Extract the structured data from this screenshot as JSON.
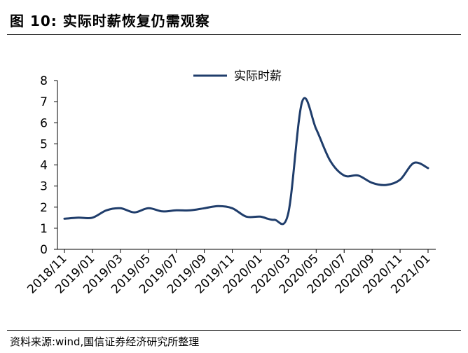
{
  "figure": {
    "title": "图 10:  实际时薪恢复仍需观察",
    "source": "资料来源:wind,国信证券经济研究所整理"
  },
  "chart_data": {
    "type": "line",
    "title": "",
    "xlabel": "",
    "ylabel": "",
    "ylim": [
      0,
      8
    ],
    "yticks": [
      0,
      1,
      2,
      3,
      4,
      5,
      6,
      7,
      8
    ],
    "x_tick_labels": [
      "2018/11",
      "2019/01",
      "2019/03",
      "2019/05",
      "2019/07",
      "2019/09",
      "2019/11",
      "2020/01",
      "2020/03",
      "2020/05",
      "2020/07",
      "2020/09",
      "2020/11",
      "2021/01"
    ],
    "grid": false,
    "legend_position": "top-center",
    "series": [
      {
        "name": "实际时薪",
        "color": "#1f3d6b",
        "x": [
          "2018/11",
          "2018/12",
          "2019/01",
          "2019/02",
          "2019/03",
          "2019/04",
          "2019/05",
          "2019/06",
          "2019/07",
          "2019/08",
          "2019/09",
          "2019/10",
          "2019/11",
          "2019/12",
          "2020/01",
          "2020/02",
          "2020/03",
          "2020/04",
          "2020/05",
          "2020/06",
          "2020/07",
          "2020/08",
          "2020/09",
          "2020/10",
          "2020/11",
          "2020/12",
          "2021/01"
        ],
        "values": [
          1.45,
          1.5,
          1.5,
          1.85,
          1.95,
          1.75,
          1.95,
          1.8,
          1.85,
          1.85,
          1.95,
          2.05,
          1.95,
          1.55,
          1.55,
          1.4,
          1.7,
          7.0,
          5.7,
          4.2,
          3.5,
          3.5,
          3.15,
          3.05,
          3.3,
          4.1,
          3.85
        ]
      }
    ]
  }
}
